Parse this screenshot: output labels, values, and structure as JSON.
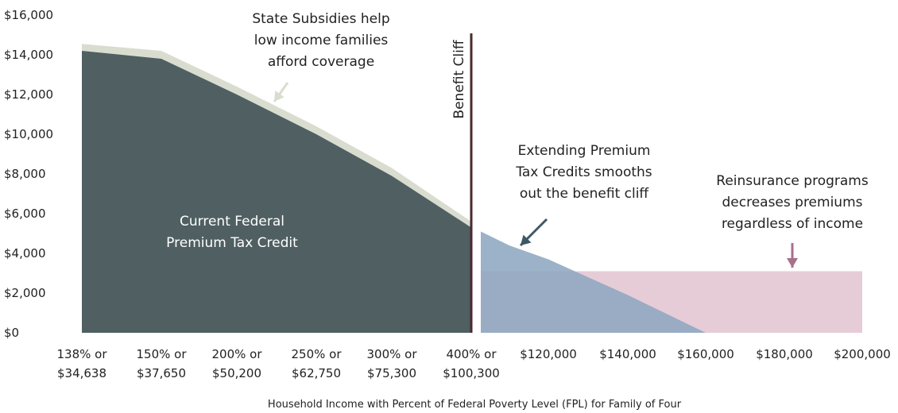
{
  "chart_data": {
    "type": "area",
    "xlabel": "Household Income with Percent of Federal Poverty Level (FPL) for Family of Four",
    "ylabel": "",
    "ylim": [
      0,
      16000
    ],
    "y_ticks": [
      "$0",
      "$2,000",
      "$4,000",
      "$6,000",
      "$8,000",
      "$10,000",
      "$12,000",
      "$14,000",
      "$16,000"
    ],
    "y_tick_values": [
      0,
      2000,
      4000,
      6000,
      8000,
      10000,
      12000,
      14000,
      16000
    ],
    "x_ticks": [
      {
        "fpl": "138% or",
        "income": "$34,638"
      },
      {
        "fpl": "150% or",
        "income": "$37,650"
      },
      {
        "fpl": "200% or",
        "income": "$50,200"
      },
      {
        "fpl": "250% or",
        "income": "$62,750"
      },
      {
        "fpl": "300% or",
        "income": "$75,300"
      },
      {
        "fpl": "400% or",
        "income": "$100,300"
      },
      {
        "fpl": "",
        "income": "$120,000"
      },
      {
        "fpl": "",
        "income": "$140,000"
      },
      {
        "fpl": "",
        "income": "$160,000"
      },
      {
        "fpl": "",
        "income": "$180,000"
      },
      {
        "fpl": "",
        "income": "$200,000"
      }
    ],
    "x_tick_values": [
      34638,
      37650,
      50200,
      62750,
      75300,
      100300,
      120000,
      140000,
      160000,
      180000,
      200000
    ],
    "segments": [
      {
        "from": 0,
        "to": 5
      },
      {
        "from": 5,
        "to": 10
      }
    ],
    "series": [
      {
        "name": "Current Federal Premium Tax Credit",
        "color": "#4f5f62",
        "x": [
          34638,
          37650,
          50200,
          62750,
          75300,
          100300
        ],
        "y": [
          14200,
          13800,
          12000,
          10000,
          7900,
          5300
        ]
      },
      {
        "name": "State Subsidies",
        "color": "#d9ddd0",
        "x": [
          34638,
          37650,
          50200,
          62750,
          75300,
          100300
        ],
        "y": [
          14550,
          14200,
          12400,
          10400,
          8300,
          5600
        ]
      },
      {
        "name": "Extended Premium Tax Credits",
        "color": "#8ea7c1",
        "x": [
          100300,
          110000,
          120000,
          140000,
          160000
        ],
        "y": [
          5100,
          4400,
          3700,
          1900,
          0
        ]
      },
      {
        "name": "Reinsurance",
        "color": "#e6ccd6",
        "x": [
          100300,
          200000
        ],
        "y": [
          3100,
          3100
        ]
      }
    ],
    "benefit_cliff": {
      "label": "Benefit Cliff",
      "x": 100300,
      "color": "#4a2a30"
    },
    "annotations": {
      "federal": [
        "Current Federal",
        "Premium Tax Credit"
      ],
      "state": [
        "State Subsidies help",
        "low income families",
        "afford coverage"
      ],
      "extend": [
        "Extending Premium",
        "Tax Credits smooths",
        "out the benefit cliff"
      ],
      "reinsurance": [
        "Reinsurance programs",
        "decreases premiums",
        "regardless of income"
      ]
    },
    "arrow_colors": {
      "state": "#d9ddd0",
      "extend": "#3f5866",
      "reinsurance": "#a8708a"
    },
    "grid": false
  }
}
